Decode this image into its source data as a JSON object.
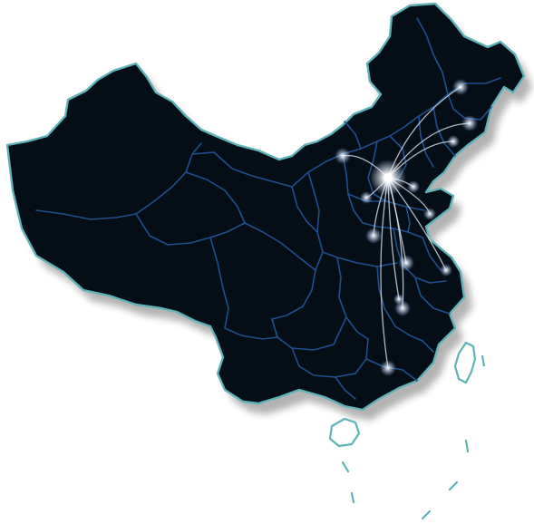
{
  "map": {
    "colors": {
      "background": "#ffffff",
      "land_fill": "#050d17",
      "border": "#5fb3b8",
      "province_lines": "#1f4f8f",
      "shadow": "#9a9a9a",
      "flow_line": "#e8f2ff",
      "glow": "#ffffff"
    },
    "hub": "hub-beijing",
    "destinations": [
      "dest-heilongjiang",
      "dest-jilin",
      "dest-liaoning",
      "dest-inner-mongolia",
      "dest-tianjin",
      "dest-hebei",
      "dest-shandong",
      "dest-henan",
      "dest-anhui",
      "dest-jiangsu",
      "dest-zhejiang",
      "dest-jiangxi",
      "dest-guangdong"
    ]
  }
}
